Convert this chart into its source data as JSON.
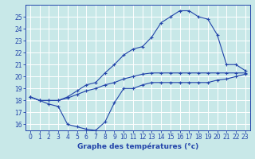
{
  "hours": [
    0,
    1,
    2,
    3,
    4,
    5,
    6,
    7,
    8,
    9,
    10,
    11,
    12,
    13,
    14,
    15,
    16,
    17,
    18,
    19,
    20,
    21,
    22,
    23
  ],
  "temp_max": [
    18.3,
    18.0,
    18.0,
    18.0,
    18.3,
    18.8,
    19.3,
    19.5,
    20.3,
    21.0,
    21.8,
    22.3,
    22.5,
    23.3,
    24.5,
    25.0,
    25.5,
    25.5,
    25.0,
    24.8,
    23.5,
    21.0,
    21.0,
    20.5
  ],
  "temp_min": [
    18.3,
    18.0,
    17.7,
    17.5,
    16.0,
    15.8,
    15.6,
    15.5,
    16.2,
    17.8,
    19.0,
    19.0,
    19.3,
    19.5,
    19.5,
    19.5,
    19.5,
    19.5,
    19.5,
    19.5,
    19.7,
    19.8,
    20.0,
    20.2
  ],
  "temp_avg": [
    18.3,
    18.0,
    18.0,
    18.0,
    18.2,
    18.5,
    18.8,
    19.0,
    19.3,
    19.5,
    19.8,
    20.0,
    20.2,
    20.3,
    20.3,
    20.3,
    20.3,
    20.3,
    20.3,
    20.3,
    20.3,
    20.3,
    20.3,
    20.3
  ],
  "line_color": "#2244aa",
  "bg_color": "#c8e8e8",
  "grid_color": "#ffffff",
  "xlabel": "Graphe des températures (°c)",
  "ylim": [
    15.5,
    26.0
  ],
  "xlim": [
    -0.5,
    23.5
  ],
  "yticks": [
    16,
    17,
    18,
    19,
    20,
    21,
    22,
    23,
    24,
    25
  ],
  "xticks": [
    0,
    1,
    2,
    3,
    4,
    5,
    6,
    7,
    8,
    9,
    10,
    11,
    12,
    13,
    14,
    15,
    16,
    17,
    18,
    19,
    20,
    21,
    22,
    23
  ],
  "tick_fontsize": 5.5,
  "xlabel_fontsize": 6.5
}
